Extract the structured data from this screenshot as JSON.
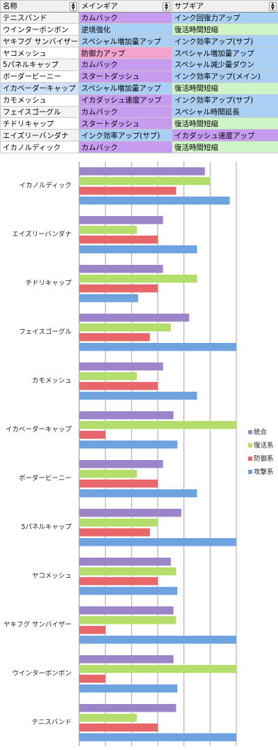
{
  "table": {
    "headers": [
      "名称",
      "メインギア",
      "サブギア"
    ],
    "rows": [
      {
        "name": "テニスバンド",
        "main": "カムバック",
        "sub": "インク回復力アップ"
      },
      {
        "name": "ウインターボンボン",
        "main": "逆境強化",
        "sub": "復活時間短縮"
      },
      {
        "name": "ヤキフグ サンバイザー",
        "main": "スペシャル増加量アップ",
        "sub": "インク効率アップ(サブ)"
      },
      {
        "name": "ヤコメッシュ",
        "main": "防御力アップ",
        "sub": "スペシャル増加量アップ"
      },
      {
        "name": "5パネルキャップ",
        "main": "カムバック",
        "sub": "スペシャル減少量ダウン"
      },
      {
        "name": "ボーダービーニー",
        "main": "スタートダッシュ",
        "sub": "インク効率アップ(メイン)"
      },
      {
        "name": "イカベーダーキャップ",
        "main": "スペシャル増加量アップ",
        "sub": "復活時間短縮"
      },
      {
        "name": "カモメッシュ",
        "main": "イカダッシュ速度アップ",
        "sub": "インク効率アップ(サブ)"
      },
      {
        "name": "フェイスゴーグル",
        "main": "カムバック",
        "sub": "スペシャル時間延長"
      },
      {
        "name": "チドリキャップ",
        "main": "スタートダッシュ",
        "sub": "復活時間短縮"
      },
      {
        "name": "エイズリーバンダナ",
        "main": "インク効率アップ(サブ)",
        "sub": "イカダッシュ速度アップ"
      },
      {
        "name": "イカノルディック",
        "main": "カムバック",
        "sub": "復活時間短縮"
      }
    ],
    "cell_colors": {
      "カムバック": "#c79cf0",
      "逆境強化": "#a9cff5",
      "スペシャル増加量アップ": "#a9cff5",
      "防御力アップ": "#f3a3cf",
      "スタートダッシュ": "#c79cf0",
      "イカダッシュ速度アップ": "#c79cf0",
      "インク効率アップ(サブ)": "#a9cff5",
      "インク回復力アップ": "#a9cff5",
      "復活時間短縮": "#cff5c7",
      "インク効率アップ(メイン)": "#a9cff5",
      "スペシャル減少量ダウン": "#a9cff5",
      "スペシャル時間延長": "#a9cff5"
    }
  },
  "chart_data": {
    "type": "bar",
    "orientation": "horizontal",
    "categories": [
      "イカノルディック",
      "エイズリーバンダナ",
      "チドリキャップ",
      "フェイスゴーグル",
      "カモメッシュ",
      "イカベーダーキャップ",
      "ボーダービーニー",
      "5パネルキャップ",
      "ヤコメッシュ",
      "ヤキフグ サンバイザー",
      "ウインターボンボン",
      "テニスバンド"
    ],
    "series": [
      {
        "name": "統合",
        "color": "#9d85c9",
        "values": [
          2.4,
          1.6,
          1.6,
          2.1,
          1.6,
          1.8,
          1.6,
          1.95,
          1.75,
          1.8,
          1.8,
          1.85
        ]
      },
      {
        "name": "復活系",
        "color": "#b4de6b",
        "values": [
          2.5,
          1.1,
          2.25,
          1.75,
          1.1,
          3.0,
          1.1,
          1.5,
          1.85,
          1.85,
          3.0,
          1.1
        ]
      },
      {
        "name": "防御系",
        "color": "#e8676a",
        "values": [
          1.85,
          1.5,
          1.5,
          1.35,
          1.5,
          0.5,
          1.5,
          1.35,
          1.5,
          0.5,
          0.5,
          1.5
        ]
      },
      {
        "name": "攻撃系",
        "color": "#6fa3e0",
        "values": [
          2.875,
          2.25,
          1.125,
          3.0,
          2.25,
          1.875,
          2.25,
          3.0,
          1.875,
          3.0,
          1.875,
          3.0
        ]
      }
    ],
    "legend_order": [
      "統合",
      "復活系",
      "防御系",
      "攻撃系"
    ],
    "legend_position": "right",
    "xlim": [
      0,
      3.0
    ],
    "grid": true
  }
}
